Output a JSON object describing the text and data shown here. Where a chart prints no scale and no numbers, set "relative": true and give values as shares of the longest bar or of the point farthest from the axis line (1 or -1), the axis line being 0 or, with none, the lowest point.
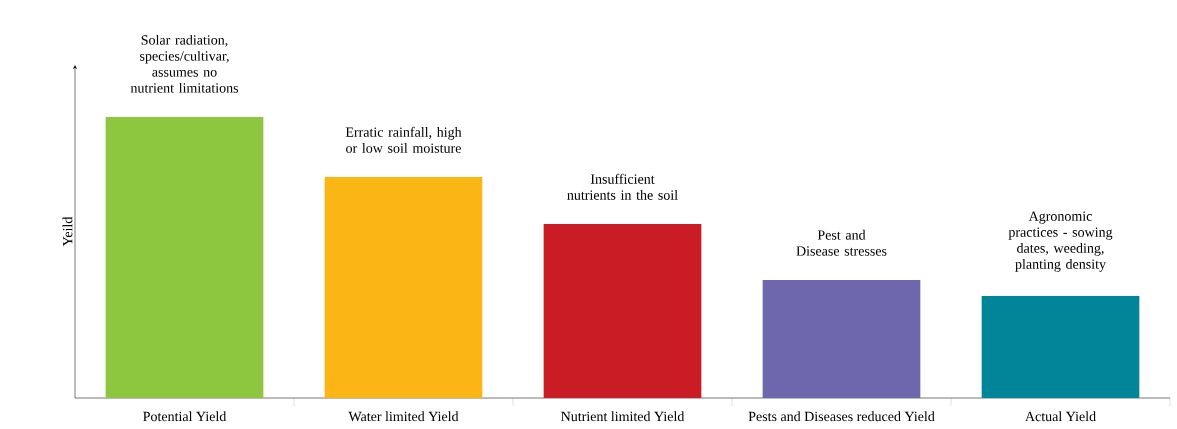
{
  "chart_data": {
    "type": "bar",
    "relative": true,
    "ylabel": "Yeild",
    "categories": [
      "Potential Yield",
      "Water limited Yield",
      "Nutrient limited Yield",
      "Pests and Diseases reduced Yield",
      "Actual Yield"
    ],
    "values": [
      1,
      0.786,
      0.619,
      0.42,
      0.363
    ],
    "colors": [
      "#8dc63f",
      "#fbb615",
      "#c91c24",
      "#6e67ae",
      "#008698"
    ],
    "annotations": [
      {
        "text": "Solar radiation, species/cultivar, assumes no nutrient limitations",
        "x": "Potential Yield",
        "y": 1
      },
      {
        "text": "Erratic rainfall, high or low soil moisture",
        "x": "Water limited Yield",
        "y": 0.786
      },
      {
        "text": "Insufficient nutrients in the soil",
        "x": "Nutrient limited Yield",
        "y": 0.619
      },
      {
        "text": "Pest and Disease stresses",
        "x": "Pests and Diseases reduced Yield",
        "y": 0.42
      },
      {
        "text": "Agronomic practices - sowing dates, weeding, planting density",
        "x": "Actual Yield",
        "y": 0.363
      }
    ]
  }
}
